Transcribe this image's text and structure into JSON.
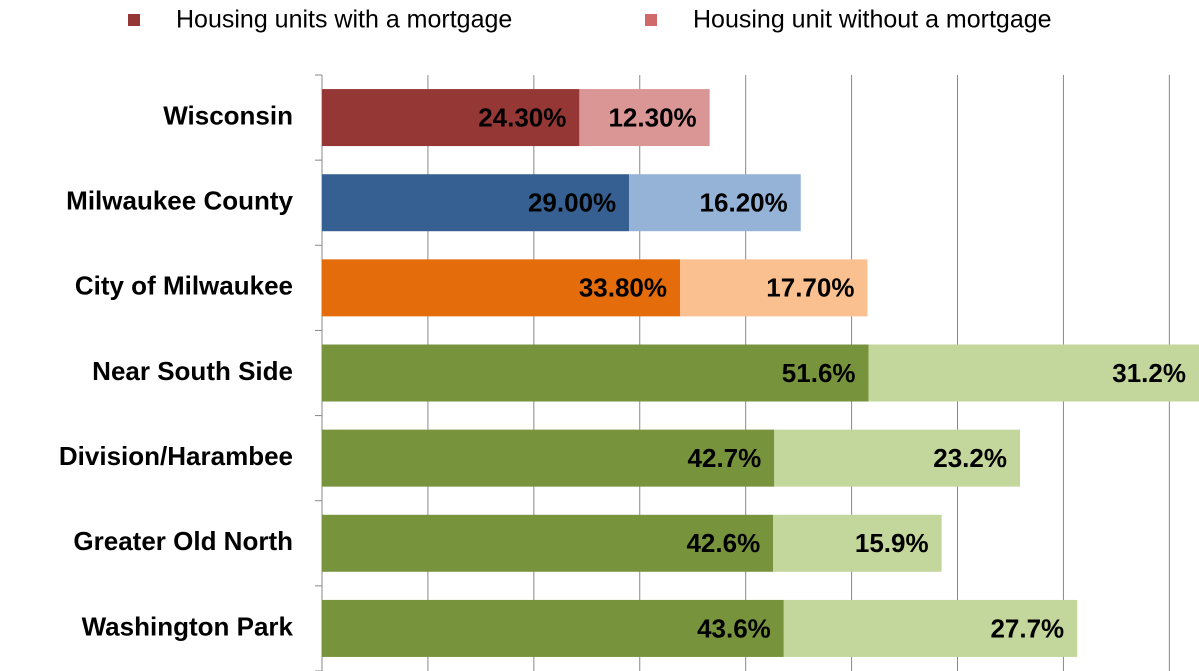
{
  "chart_data": {
    "type": "stacked-barh",
    "categories": [
      "Wisconsin",
      "Milwaukee County",
      "City of Milwaukee",
      "Near South Side",
      "Division/Harambee",
      "Greater Old North",
      "Washington Park"
    ],
    "series": [
      {
        "name": "Housing units with a mortgage",
        "color": "#953735",
        "colors": [
          "#953735",
          "#366092",
          "#e46c0a",
          "#77933c",
          "#77933c",
          "#77933c",
          "#77933c"
        ],
        "values": [
          24.3,
          29.0,
          33.8,
          51.6,
          42.7,
          42.6,
          43.6
        ],
        "value_labels": [
          "24.30%",
          "29.00%",
          "33.80%",
          "51.6%",
          "42.7%",
          "42.6%",
          "43.6%"
        ]
      },
      {
        "name": "Housing unit without a mortgage",
        "color": "#d06a6a",
        "colors": [
          "#d99694",
          "#95b3d7",
          "#fac090",
          "#c3d69b",
          "#c3d69b",
          "#c3d69b",
          "#c3d69b"
        ],
        "values": [
          12.3,
          16.2,
          17.7,
          31.2,
          23.2,
          15.9,
          27.7
        ],
        "value_labels": [
          "12.30%",
          "16.20%",
          "17.70%",
          "31.2%",
          "23.2%",
          "15.9%",
          "27.7%"
        ]
      }
    ],
    "xlim": [
      0,
      82.8
    ],
    "xticks": [
      0,
      10,
      20,
      30,
      40,
      50,
      60,
      70,
      80
    ],
    "grid": true,
    "legend": "top"
  }
}
